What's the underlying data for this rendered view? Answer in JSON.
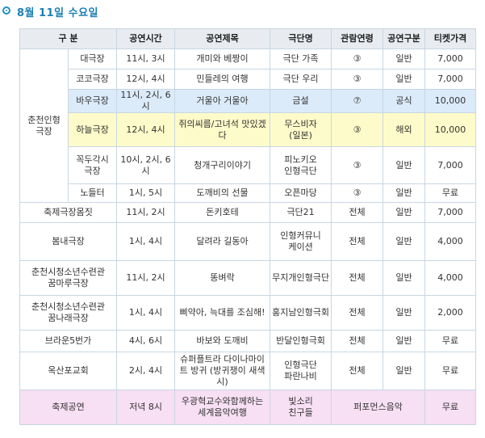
{
  "header": {
    "title": "8월 11일 수요일"
  },
  "columns": [
    "구 분",
    "공연시간",
    "공연제목",
    "극단명",
    "관람연령",
    "공연구분",
    "티켓가격"
  ],
  "venue_group": "춘천인형\n극장",
  "rows": [
    {
      "sub": "대극장",
      "time": "11시, 3시",
      "title": "개미와 베짱이",
      "company": "극단 가족",
      "age": "③",
      "type": "일반",
      "price": "7,000"
    },
    {
      "sub": "코코극장",
      "time": "12시, 4시",
      "title": "민들레의 여행",
      "company": "극단 우리",
      "age": "③",
      "type": "일반",
      "price": "7,000"
    },
    {
      "sub": "바우극장",
      "time": "11시, 2시, 6시",
      "title": "거울아 거울아",
      "company": "금설",
      "age": "⑦",
      "type": "공식",
      "price": "10,000"
    },
    {
      "sub": "하늘극장",
      "time": "12시, 4시",
      "title": "쥐의씨름/고녀석 맛있겠다",
      "company": "무스비자\n(일본)",
      "age": "③",
      "type": "해외",
      "price": "10,000"
    },
    {
      "sub": "꼭두각시\n극장",
      "time": "10시, 2시, 6시",
      "title": "청개구리이야기",
      "company": "피노키오\n인형극단",
      "age": "③",
      "type": "일반",
      "price": "7,000"
    },
    {
      "sub": "노들터",
      "time": "1시, 5시",
      "title": "도깨비의 선물",
      "company": "오픈마당",
      "age": "③",
      "type": "일반",
      "price": "무료"
    },
    {
      "venue": "축제극장몸짓",
      "time": "11시, 2시",
      "title": "돈키호테",
      "company": "극단21",
      "age": "전체",
      "type": "일반",
      "price": "7,000"
    },
    {
      "venue": "봄내극장",
      "time": "1시, 4시",
      "title": "달려라 길동아",
      "company": "인형커뮤니\n케이션",
      "age": "전체",
      "type": "일반",
      "price": "4,000"
    },
    {
      "venue": "춘천시청소년수련관\n꿈마루극장",
      "time": "11시, 2시",
      "title": "똥벼락",
      "company": "무지개인형극단",
      "age": "전체",
      "type": "일반",
      "price": "4,000"
    },
    {
      "venue": "춘천시청소년수련관\n꿈나래극장",
      "time": "1시, 4시",
      "title": "삐약아, 늑대를 조심해!",
      "company": "홍지남인형극회",
      "age": "전체",
      "type": "일반",
      "price": "2,000"
    },
    {
      "venue": "브라운5번가",
      "time": "4시, 6시",
      "title": "바보와 도깨비",
      "company": "반달인형극회",
      "age": "전체",
      "type": "일반",
      "price": "무료"
    },
    {
      "venue": "옥산포교회",
      "time": "2시, 4시",
      "title": "슈퍼플트라 다이나마이트 방귀 (방귀쟁이 새색시)",
      "company": "인형극단\n파란나비",
      "age": "전체",
      "type": "일반",
      "price": "무료"
    },
    {
      "venue": "축제공연",
      "time": "저녁 8시",
      "title": "우광혁교수와함께하는 세계음악여행",
      "company": "빛소리\n친구들",
      "type_span": "퍼포먼스음악",
      "price": "무료"
    }
  ]
}
